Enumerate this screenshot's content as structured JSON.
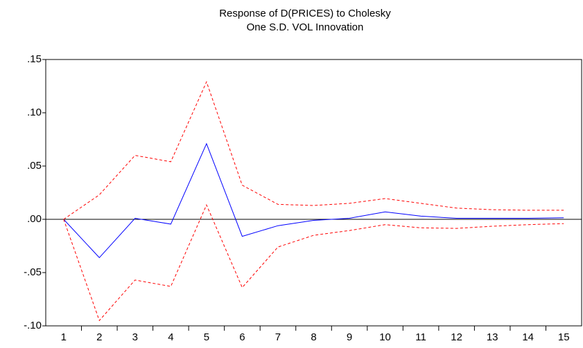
{
  "chart_data": {
    "type": "line",
    "title": [
      "Response of D(PRICES) to Cholesky",
      "One S.D. VOL Innovation"
    ],
    "categories": [
      "1",
      "2",
      "3",
      "4",
      "5",
      "6",
      "7",
      "8",
      "9",
      "10",
      "11",
      "12",
      "13",
      "14",
      "15"
    ],
    "series": [
      {
        "color": "#0000ff",
        "style": "solid",
        "values": [
          0,
          -0.036,
          0.001,
          -0.0045,
          0.071,
          -0.016,
          -0.006,
          -0.001,
          0.001,
          0.007,
          0.003,
          0.001,
          0.001,
          0.001,
          0.0015
        ]
      },
      {
        "color": "#ff0000",
        "style": "dashed",
        "values": [
          0,
          0.023,
          0.06,
          0.054,
          0.129,
          0.032,
          0.014,
          0.013,
          0.015,
          0.0195,
          0.015,
          0.0105,
          0.009,
          0.0085,
          0.0085
        ]
      },
      {
        "color": "#ff0000",
        "style": "dashed",
        "values": [
          0,
          -0.095,
          -0.057,
          -0.063,
          0.0135,
          -0.064,
          -0.026,
          -0.015,
          -0.0105,
          -0.005,
          -0.008,
          -0.0085,
          -0.0065,
          -0.005,
          -0.004
        ]
      }
    ],
    "ylim": [
      -0.1,
      0.15
    ],
    "yticks": [
      {
        "value": -0.1,
        "label": "-.10"
      },
      {
        "value": -0.05,
        "label": "-.05"
      },
      {
        "value": 0,
        "label": ".00"
      },
      {
        "value": 0.05,
        "label": ".05"
      },
      {
        "value": 0.1,
        "label": ".10"
      },
      {
        "value": 0.15,
        "label": ".15"
      }
    ],
    "reference_line": 0
  }
}
